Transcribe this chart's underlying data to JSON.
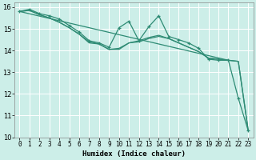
{
  "xlabel": "Humidex (Indice chaleur)",
  "bg_color": "#cceee8",
  "line_color": "#2e8b74",
  "grid_color": "#b0ddd8",
  "xlim": [
    -0.5,
    23.5
  ],
  "ylim": [
    10,
    16.2
  ],
  "yticks": [
    10,
    11,
    12,
    13,
    14,
    15,
    16
  ],
  "xticks": [
    0,
    1,
    2,
    3,
    4,
    5,
    6,
    7,
    8,
    9,
    10,
    11,
    12,
    13,
    14,
    15,
    16,
    17,
    18,
    19,
    20,
    21,
    22,
    23
  ],
  "series": [
    {
      "x": [
        0,
        1,
        2,
        3,
        4,
        5,
        6,
        7,
        8,
        9,
        10,
        11,
        12,
        13,
        14,
        15,
        16,
        17,
        18,
        19,
        20,
        21,
        22,
        23
      ],
      "y": [
        15.8,
        15.9,
        15.7,
        15.6,
        15.45,
        15.15,
        14.85,
        14.45,
        14.35,
        14.15,
        15.05,
        15.35,
        14.45,
        15.1,
        15.6,
        14.65,
        14.5,
        14.35,
        14.1,
        13.6,
        13.55,
        13.55,
        11.8,
        10.3
      ],
      "marker": true,
      "lw": 0.9
    },
    {
      "x": [
        0,
        1,
        2,
        3,
        4,
        5,
        6,
        7,
        8,
        9,
        10,
        11,
        12,
        13,
        14,
        15,
        16,
        17,
        18,
        19,
        20,
        21,
        22,
        23
      ],
      "y": [
        15.8,
        15.85,
        15.65,
        15.5,
        15.3,
        15.05,
        14.75,
        14.4,
        14.3,
        14.05,
        14.05,
        14.35,
        14.4,
        14.55,
        14.65,
        14.55,
        14.35,
        14.15,
        13.95,
        13.65,
        13.6,
        13.55,
        13.5,
        10.3
      ],
      "marker": false,
      "lw": 0.9
    },
    {
      "x": [
        0,
        1,
        2,
        3,
        4,
        5,
        6,
        7,
        8,
        9,
        10,
        11,
        12,
        13,
        14,
        15,
        16,
        17,
        18,
        19,
        20,
        21,
        22,
        23
      ],
      "y": [
        15.8,
        15.85,
        15.65,
        15.5,
        15.3,
        15.05,
        14.75,
        14.35,
        14.3,
        14.05,
        14.1,
        14.35,
        14.45,
        14.6,
        14.7,
        14.55,
        14.35,
        14.15,
        13.95,
        13.65,
        13.6,
        13.55,
        13.5,
        10.3
      ],
      "marker": false,
      "lw": 0.9
    },
    {
      "x": [
        0,
        21
      ],
      "y": [
        15.8,
        13.55
      ],
      "marker": false,
      "lw": 0.9
    }
  ]
}
